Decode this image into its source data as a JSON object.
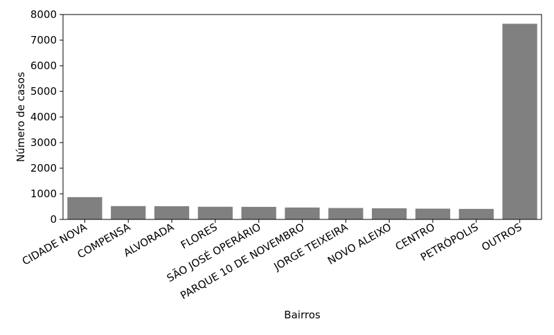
{
  "chart_data": {
    "type": "bar",
    "title": "",
    "xlabel": "Bairros",
    "ylabel": "Número de casos",
    "categories": [
      "CIDADE NOVA",
      "COMPENSA",
      "ALVORADA",
      "FLORES",
      "SÃO JOSÉ OPERÁRIO",
      "PARQUE 10 DE NOVEMBRO",
      "JORGE TEIXEIRA",
      "NOVO ALEIXO",
      "CENTRO",
      "PETRÓPOLIS",
      "OUTROS"
    ],
    "values": [
      870,
      520,
      515,
      495,
      490,
      465,
      445,
      435,
      420,
      410,
      7640
    ],
    "ylim": [
      0,
      8000
    ],
    "yticks": [
      0,
      1000,
      2000,
      3000,
      4000,
      5000,
      6000,
      7000,
      8000
    ],
    "grid": false,
    "bar_color": "#808080"
  }
}
